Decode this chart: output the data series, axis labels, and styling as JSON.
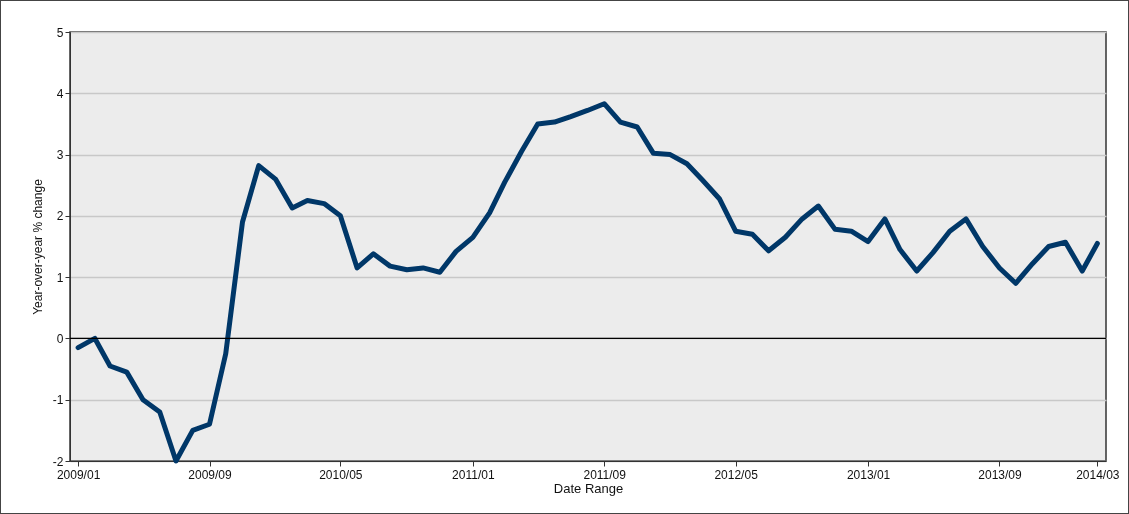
{
  "chart_data": {
    "type": "line",
    "xlabel": "Date Range",
    "ylabel": "Year-over-year % change",
    "x": [
      "2009-01",
      "2009-02",
      "2009-03",
      "2009-04",
      "2009-05",
      "2009-06",
      "2009-07",
      "2009-08",
      "2009-09",
      "2009-10",
      "2009-11",
      "2009-12",
      "2010-01",
      "2010-02",
      "2010-03",
      "2010-04",
      "2010-05",
      "2010-06",
      "2010-07",
      "2010-08",
      "2010-09",
      "2010-10",
      "2010-11",
      "2010-12",
      "2011-01",
      "2011-02",
      "2011-03",
      "2011-04",
      "2011-05",
      "2011-06",
      "2011-07",
      "2011-08",
      "2011-09",
      "2011-10",
      "2011-11",
      "2011-12",
      "2012-01",
      "2012-02",
      "2012-03",
      "2012-04",
      "2012-05",
      "2012-06",
      "2012-07",
      "2012-08",
      "2012-09",
      "2012-10",
      "2012-11",
      "2012-12",
      "2013-01",
      "2013-02",
      "2013-03",
      "2013-04",
      "2013-05",
      "2013-06",
      "2013-07",
      "2013-08",
      "2013-09",
      "2013-10",
      "2013-11",
      "2013-12",
      "2014-01",
      "2014-02",
      "2014-03"
    ],
    "series": [
      {
        "color": "#003768",
        "values": [
          -0.15,
          0.0,
          -0.45,
          -0.55,
          -1.0,
          -1.2,
          -2.0,
          -1.5,
          -1.4,
          -0.25,
          1.9,
          2.82,
          2.6,
          2.13,
          2.25,
          2.2,
          2.0,
          1.15,
          1.38,
          1.18,
          1.12,
          1.15,
          1.08,
          1.42,
          1.65,
          2.05,
          2.55,
          3.05,
          3.5,
          3.53,
          3.62,
          3.72,
          3.83,
          3.53,
          3.45,
          3.02,
          3.0,
          2.85,
          2.58,
          2.28,
          1.75,
          1.7,
          1.43,
          1.65,
          1.95,
          2.16,
          1.78,
          1.75,
          1.58,
          1.95,
          1.45,
          1.1,
          1.4,
          1.75,
          1.95,
          1.5,
          1.15,
          0.9,
          1.22,
          1.5,
          1.57,
          1.1,
          1.55
        ]
      }
    ],
    "xlim": [
      "2008-12-17",
      "2014-03-17"
    ],
    "xticks": [
      {
        "value": "2009-01",
        "label": "2009/01"
      },
      {
        "value": "2009-09",
        "label": "2009/09"
      },
      {
        "value": "2010-05",
        "label": "2010/05"
      },
      {
        "value": "2011-01",
        "label": "2011/01"
      },
      {
        "value": "2011-09",
        "label": "2011/09"
      },
      {
        "value": "2012-05",
        "label": "2012/05"
      },
      {
        "value": "2013-01",
        "label": "2013/01"
      },
      {
        "value": "2013-09",
        "label": "2013/09"
      },
      {
        "value": "2014-03",
        "label": "2014/03"
      }
    ],
    "ylim": [
      -2,
      5
    ],
    "yticks": [
      -2,
      -1,
      0,
      1,
      2,
      3,
      4,
      5
    ],
    "ref_lines": [
      {
        "axis": "y",
        "value": 0,
        "color": "#000000"
      }
    ],
    "grid": "y",
    "marker": "none",
    "line_style": "solid"
  }
}
